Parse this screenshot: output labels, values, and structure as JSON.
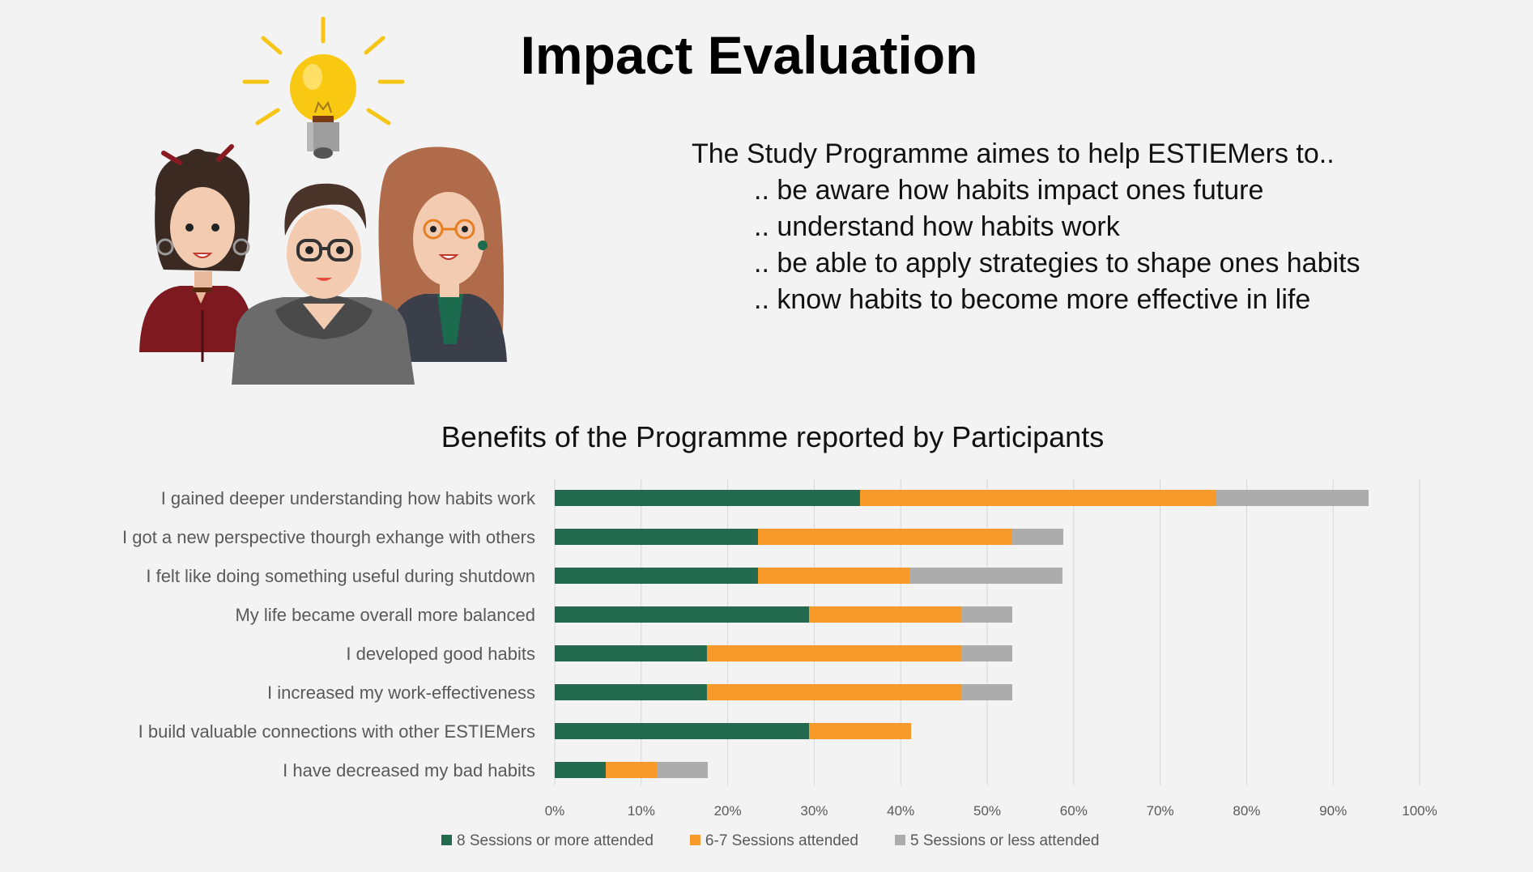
{
  "slide": {
    "title": "Impact Evaluation",
    "intro": "The Study Programme aimes to help ESTIEMers to..",
    "goals": [
      ".. be aware how habits impact ones future",
      ".. understand how habits work",
      ".. be able to apply strategies to shape ones habits",
      ".. know habits to become more effective in life"
    ]
  },
  "chart_data": {
    "type": "bar",
    "orientation": "horizontal",
    "stacked": true,
    "title": "Benefits of the Programme reported by Participants",
    "categories": [
      "I gained deeper understanding how habits work",
      "I got a new perspective thourgh exhange with others",
      "I felt like doing something useful during shutdown",
      "My life became overall more balanced",
      "I developed good habits",
      "I increased my work-effectiveness",
      "I build valuable connections with other ESTIEMers",
      "I have decreased my bad habits"
    ],
    "series": [
      {
        "name": "8 Sessions or more attended",
        "color": "#236a4e",
        "values": [
          35.3,
          23.5,
          23.5,
          29.4,
          17.6,
          17.6,
          29.4,
          5.9
        ]
      },
      {
        "name": "6-7 Sessions attended",
        "color": "#f79a2a",
        "values": [
          41.2,
          29.4,
          17.6,
          17.6,
          29.4,
          29.4,
          11.8,
          5.9
        ]
      },
      {
        "name": "5 Sessions or less attended",
        "color": "#acacac",
        "values": [
          17.6,
          5.9,
          17.6,
          5.9,
          5.9,
          5.9,
          0,
          5.9
        ]
      }
    ],
    "xlim": [
      0,
      100
    ],
    "xticks": [
      "0%",
      "10%",
      "20%",
      "30%",
      "40%",
      "50%",
      "60%",
      "70%",
      "80%",
      "90%",
      "100%"
    ],
    "grid": true,
    "legend": "bottom"
  }
}
